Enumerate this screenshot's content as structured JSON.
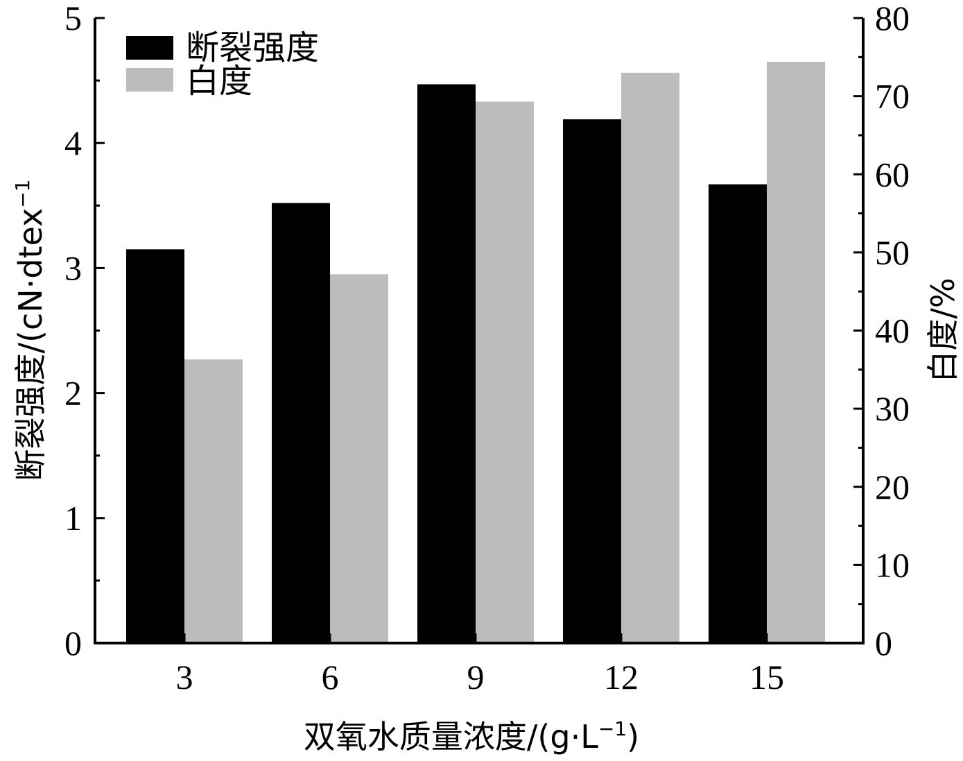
{
  "chart_data": {
    "type": "bar",
    "categories": [
      "3",
      "6",
      "9",
      "12",
      "15"
    ],
    "series": [
      {
        "name": "断裂强度",
        "axis": "left",
        "color": "#000000",
        "values": [
          3.15,
          3.52,
          4.47,
          4.19,
          3.67
        ]
      },
      {
        "name": "白度",
        "axis": "right",
        "color": "#bcbcbc",
        "values": [
          36.3,
          47.2,
          69.3,
          73.0,
          74.4
        ]
      }
    ],
    "xlabel_main": "双氧水质量浓度/(g·L",
    "xlabel_sup": "−1",
    "xlabel_end": ")",
    "ylabel_left_main": "断裂强度/(cN·dtex",
    "ylabel_left_sup": "−1",
    "ylabel_right": "白度/%",
    "ylim_left": [
      0,
      5
    ],
    "ylim_right": [
      0,
      80
    ],
    "yticks_left": [
      "0",
      "1",
      "2",
      "3",
      "4",
      "5"
    ],
    "yticks_right": [
      "0",
      "10",
      "20",
      "30",
      "40",
      "50",
      "60",
      "70",
      "80"
    ],
    "legend_position": "top-left",
    "grid": false
  }
}
